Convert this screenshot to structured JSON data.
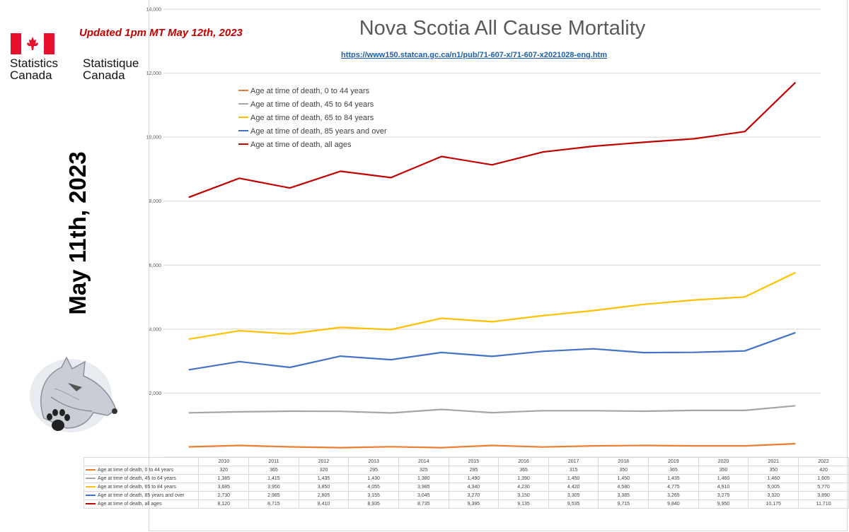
{
  "header": {
    "updated_note": "Updated 1pm MT May 12th, 2023",
    "org_en": "Statistics\nCanada",
    "org_fr": "Statistique\nCanada",
    "side_date": "May 11th, 2023",
    "flag_icon": "canada-flag-icon",
    "mascot_icon": "wolf-paw-drawing-icon"
  },
  "chart_data": {
    "type": "line",
    "title": "Nova Scotia All Cause Mortality",
    "subtitle": "https://www150.statcan.gc.ca/n1/pub/71-607-x/71-607-x2021028-eng.htm",
    "xlabel": "",
    "ylabel": "",
    "ylim": [
      0,
      14000
    ],
    "y_ticks": [
      0,
      2000,
      4000,
      6000,
      8000,
      10000,
      12000,
      14000
    ],
    "y_tick_labels": [
      "",
      "2,000",
      "4,000",
      "6,000",
      "8,000",
      "10,000",
      "12,000",
      "14,000"
    ],
    "grid": true,
    "legend_position": "top-left",
    "categories": [
      "2010",
      "2011",
      "2012",
      "2013",
      "2014",
      "2015",
      "2016",
      "2017",
      "2018",
      "2019",
      "2020",
      "2021",
      "2022"
    ],
    "series": [
      {
        "name": "Age at time of death, 0 to 44 years",
        "color": "#ed7d31",
        "values": [
          320,
          365,
          320,
          295,
          325,
          295,
          365,
          315,
          350,
          365,
          350,
          350,
          420
        ],
        "labels": [
          "320",
          "365",
          "320",
          "295",
          "325",
          "295",
          "365",
          "315",
          "350",
          "365",
          "350",
          "350",
          "420"
        ]
      },
      {
        "name": "Age at time of death, 45 to 64 years",
        "color": "#a5a5a5",
        "values": [
          1385,
          1415,
          1435,
          1430,
          1380,
          1490,
          1390,
          1450,
          1450,
          1435,
          1460,
          1460,
          1605
        ],
        "labels": [
          "1,385",
          "1,415",
          "1,435",
          "1,430",
          "1,380",
          "1,490",
          "1,390",
          "1,450",
          "1,450",
          "1,435",
          "1,460",
          "1,460",
          "1,605"
        ]
      },
      {
        "name": "Age at time of death, 65 to 84 years",
        "color": "#ffc000",
        "values": [
          3685,
          3950,
          3850,
          4055,
          3985,
          4340,
          4230,
          4420,
          4580,
          4775,
          4910,
          5005,
          5770
        ],
        "labels": [
          "3,685",
          "3,950",
          "3,850",
          "4,055",
          "3,985",
          "4,340",
          "4,230",
          "4,420",
          "4,580",
          "4,775",
          "4,910",
          "5,005",
          "5,770"
        ]
      },
      {
        "name": "Age at time of death, 85 years and over",
        "color": "#4472c4",
        "values": [
          2730,
          2985,
          2805,
          3155,
          3045,
          3270,
          3150,
          3305,
          3385,
          3265,
          3275,
          3320,
          3890
        ],
        "labels": [
          "2,730",
          "2,985",
          "2,805",
          "3,155",
          "3,045",
          "3,270",
          "3,150",
          "3,305",
          "3,385",
          "3,265",
          "3,275",
          "3,320",
          "3,890"
        ]
      },
      {
        "name": "Age at time of death, all ages",
        "color": "#c00000",
        "values": [
          8120,
          8715,
          8410,
          8935,
          8735,
          9395,
          9135,
          9535,
          9715,
          9840,
          9950,
          10175,
          11710
        ],
        "labels": [
          "8,120",
          "8,715",
          "8,410",
          "8,935",
          "8,735",
          "9,395",
          "9,135",
          "9,535",
          "9,715",
          "9,840",
          "9,950",
          "10,175",
          "11,710"
        ]
      }
    ]
  }
}
